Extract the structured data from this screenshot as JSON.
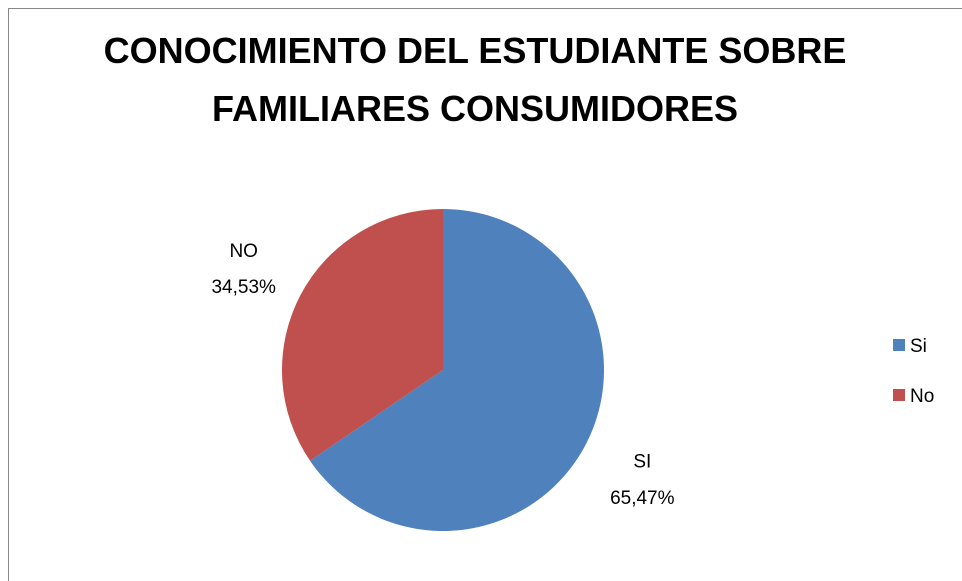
{
  "chart_data": {
    "type": "pie",
    "title": "CONOCIMIENTO DEL ESTUDIANTE SOBRE FAMILIARES CONSUMIDORES",
    "categories": [
      "Si",
      "No"
    ],
    "data_label_names": [
      "SI",
      "NO"
    ],
    "values": [
      65.47,
      34.53
    ],
    "value_labels": [
      "65,47%",
      "34,53%"
    ],
    "colors": [
      "#4f81bd",
      "#c0504d"
    ],
    "legend": "right"
  }
}
